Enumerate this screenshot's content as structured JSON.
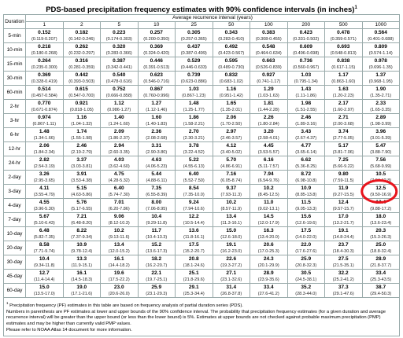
{
  "title": "PDS-based precipitation frequency estimates with 90% confidence intervals (in inches)",
  "title_note": "1",
  "header": {
    "duration": "Duration",
    "group": "Average recurrence interval (years)",
    "intervals": [
      "1",
      "2",
      "5",
      "10",
      "25",
      "50",
      "100",
      "200",
      "500",
      "1000"
    ]
  },
  "rows": [
    {
      "label": "5-min",
      "values": [
        [
          "0.152",
          "(0.119-0.207)"
        ],
        [
          "0.182",
          "(0.142-0.246)"
        ],
        [
          "0.223",
          "(0.174-0.303)"
        ],
        [
          "0.257",
          "(0.200-0.350)"
        ],
        [
          "0.305",
          "(0.257-0.365)"
        ],
        [
          "0.343",
          "(0.283-0.410)"
        ],
        [
          "0.383",
          "(0.308-0.455)"
        ],
        [
          "0.423",
          "(0.331-0.502)"
        ],
        [
          "0.478",
          "(0.359-0.571)"
        ],
        [
          "0.564",
          "(0.401-0.688)"
        ]
      ]
    },
    {
      "label": "10-min",
      "values": [
        [
          "0.218",
          "(0.180-0.268)"
        ],
        [
          "0.262",
          "(0.232-0.297)"
        ],
        [
          "0.320",
          "(0.283-0.366)"
        ],
        [
          "0.369",
          "(0.324-0.420)"
        ],
        [
          "0.437",
          "(0.387-0.499)"
        ],
        [
          "0.492",
          "(0.423-0.567)"
        ],
        [
          "0.548",
          "(0.464-0.634)"
        ],
        [
          "0.609",
          "(0.496-0.698)"
        ],
        [
          "0.693",
          "(0.548-0.813)"
        ],
        [
          "0.809",
          "(0.574-1.14)"
        ]
      ]
    },
    {
      "label": "15-min",
      "values": [
        [
          "0.264",
          "(0.235-0.300)"
        ],
        [
          "0.316",
          "(0.281-0.359)"
        ],
        [
          "0.387",
          "(0.342-0.441)"
        ],
        [
          "0.446",
          "(0.391-0.513)"
        ],
        [
          "0.529",
          "(0.446-0.633)"
        ],
        [
          "0.595",
          "(0.489-0.730)"
        ],
        [
          "0.663",
          "(0.526-0.839)"
        ],
        [
          "0.736",
          "(0.560-0.967)"
        ],
        [
          "0.838",
          "(0.617-1.15)"
        ],
        [
          "0.978",
          "(0.696-1.35)"
        ]
      ]
    },
    {
      "label": "30-min",
      "values": [
        [
          "0.369",
          "(0.328-0.419)"
        ],
        [
          "0.442",
          "(0.393-0.503)"
        ],
        [
          "0.540",
          "(0.478-0.616)"
        ],
        [
          "0.623",
          "(0.546-0.716)"
        ],
        [
          "0.739",
          "(0.623-0.886)"
        ],
        [
          "0.832",
          "(0.683-1.02)"
        ],
        [
          "0.927",
          "(0.741-1.17)"
        ],
        [
          "1.03",
          "(0.795-1.34)"
        ],
        [
          "1.17",
          "(0.863-1.60)"
        ],
        [
          "1.37",
          "(0.968-1.95)"
        ]
      ]
    },
    {
      "label": "60-min",
      "values": [
        [
          "0.514",
          "(0.457-0.584)"
        ],
        [
          "0.615",
          "(0.547-0.700)"
        ],
        [
          "0.752",
          "(0.666-0.858)"
        ],
        [
          "0.867",
          "(0.760-0.996)"
        ],
        [
          "1.03",
          "(0.867-1.23)"
        ],
        [
          "1.16",
          "(0.951-1.42)"
        ],
        [
          "1.29",
          "(1.03-1.63)"
        ],
        [
          "1.43",
          "(1.11-1.86)"
        ],
        [
          "1.63",
          "(1.20-2.23)"
        ],
        [
          "1.90",
          "(1.35-2.71)"
        ]
      ]
    },
    {
      "label": "2-hr",
      "values": [
        [
          "0.770",
          "(0.671-0.874)"
        ],
        [
          "0.921",
          "(0.818-1.05)"
        ],
        [
          "1.12",
          "(0.986-1.27)"
        ],
        [
          "1.27",
          "(1.12-1.46)"
        ],
        [
          "1.48",
          "(1.25-1.77)"
        ],
        [
          "1.65",
          "(1.35-2.01)"
        ],
        [
          "1.81",
          "(1.44-2.28)"
        ],
        [
          "1.98",
          "(1.51-2.55)"
        ],
        [
          "2.17",
          "(1.60-2.97)"
        ],
        [
          "2.33",
          "(1.65-3.35)"
        ]
      ]
    },
    {
      "label": "3-hr",
      "values": [
        [
          "0.974",
          "(0.867-1.11)"
        ],
        [
          "1.16",
          "(1.04-1.32)"
        ],
        [
          "1.40",
          "(1.24-1.60)"
        ],
        [
          "1.60",
          "(1.40-1.83)"
        ],
        [
          "1.86",
          "(1.58-2.21)"
        ],
        [
          "2.06",
          "(1.70-2.50)"
        ],
        [
          "2.26",
          "(1.80-2.84)"
        ],
        [
          "2.46",
          "(1.89-3.16)"
        ],
        [
          "2.71",
          "(2.00-3.68)"
        ],
        [
          "2.89",
          "(1.98-3.99)"
        ]
      ]
    },
    {
      "label": "6-hr",
      "values": [
        [
          "1.48",
          "(1.34-1.66)"
        ],
        [
          "1.74",
          "(1.55-1.98)"
        ],
        [
          "2.09",
          "(1.86-2.37)"
        ],
        [
          "2.36",
          "(2.08-2.68)"
        ],
        [
          "2.70",
          "(2.30-3.21)"
        ],
        [
          "2.97",
          "(2.46-3.57)"
        ],
        [
          "3.20",
          "(2.58-4.01)"
        ],
        [
          "3.43",
          "(2.67-4.37)"
        ],
        [
          "3.74",
          "(2.77-5.05)"
        ],
        [
          "3.96",
          "(3.01-5.39)"
        ]
      ]
    },
    {
      "label": "12-hr",
      "values": [
        [
          "2.06",
          "(1.84-2.34)"
        ],
        [
          "2.46",
          "(2.19-2.79)"
        ],
        [
          "2.94",
          "(2.60-3.35)"
        ],
        [
          "3.31",
          "(2.90-3.80)"
        ],
        [
          "3.78",
          "(3.22-4.52)"
        ],
        [
          "4.12",
          "(3.40-5.02)"
        ],
        [
          "4.45",
          "(3.53-5.57)"
        ],
        [
          "4.77",
          "(3.65-6.14)"
        ],
        [
          "5.17",
          "(3.81-7.06)"
        ],
        [
          "5.47",
          "(3.88-7.90)"
        ]
      ]
    },
    {
      "label": "24-hr",
      "values": [
        [
          "2.82",
          "(2.54-3.19)"
        ],
        [
          "3.37",
          "(3.03-3.81)"
        ],
        [
          "4.03",
          "(3.62-4.60)"
        ],
        [
          "4.63",
          "(4.06-5.23)"
        ],
        [
          "5.22",
          "(4.55-6.13)"
        ],
        [
          "5.70",
          "(4.86-6.91)"
        ],
        [
          "6.16",
          "(5.11-7.57)"
        ],
        [
          "6.62",
          "(5.36-8.25)"
        ],
        [
          "7.25",
          "(5.66-9.22)"
        ],
        [
          "7.56",
          "(5.68-9.99)"
        ]
      ]
    },
    {
      "label": "2-day",
      "values": [
        [
          "3.26",
          "(2.95-3.65)"
        ],
        [
          "3.91",
          "(3.53-4.38)"
        ],
        [
          "4.75",
          "(4.28-5.32)"
        ],
        [
          "5.44",
          "(4.88-6.11)"
        ],
        [
          "6.40",
          "(5.52-7.50)"
        ],
        [
          "7.16",
          "(6.05-8.74)"
        ],
        [
          "7.94",
          "(6.54-9.76)"
        ],
        [
          "8.72",
          "(6.98-10.8)"
        ],
        [
          "9.80",
          "(7.59-11.5)"
        ],
        [
          "10.5",
          "(7.94-12.8)"
        ]
      ]
    },
    {
      "label": "3-day",
      "values": [
        [
          "4.11",
          "(3.55-4.79)"
        ],
        [
          "5.15",
          "(4.63-5.86)"
        ],
        [
          "6.40",
          "(5.74-7.30)"
        ],
        [
          "7.35",
          "(6.55-8.39)"
        ],
        [
          "8.54",
          "(7.35-10.0)"
        ],
        [
          "9.37",
          "(7.93-11.3)"
        ],
        [
          "10.2",
          "(8.45-12.5)"
        ],
        [
          "10.9",
          "(8.85-13.8)"
        ],
        [
          "11.9",
          "(9.27-15.5)"
        ],
        [
          "12.5",
          "(9.50-16.9)"
        ]
      ]
    },
    {
      "label": "4-day",
      "values": [
        [
          "4.55",
          "(3.96-5.30)"
        ],
        [
          "5.76",
          "(5.17-6.55)"
        ],
        [
          "7.01",
          "(6.20-7.86)"
        ],
        [
          "8.00",
          "(7.06-8.95)"
        ],
        [
          "9.24",
          "(7.94-10.6)"
        ],
        [
          "10.2",
          "(8.57-11.9)"
        ],
        [
          "11.0",
          "(9.02-13.1)"
        ],
        [
          "11.5",
          "(9.05-13.3)"
        ],
        [
          "12.4",
          "(9.57-15.7)"
        ],
        [
          "13.4",
          "(9.88-17.2)"
        ]
      ]
    },
    {
      "label": "7-day",
      "values": [
        [
          "5.67",
          "(5.10-6.43)"
        ],
        [
          "7.21",
          "(6.48-8.20)"
        ],
        [
          "9.06",
          "(8.12-10.3)"
        ],
        [
          "10.4",
          "(9.29-11.8)"
        ],
        [
          "12.2",
          "(10.5-14.4)"
        ],
        [
          "13.4",
          "(11.3-16.1)"
        ],
        [
          "14.5",
          "(12.0-17.9)"
        ],
        [
          "15.6",
          "(12.6-19.6)"
        ],
        [
          "17.0",
          "(13.2-21.7)"
        ],
        [
          "18.0",
          "(13.6-23.4)"
        ]
      ]
    },
    {
      "label": "10-day",
      "values": [
        [
          "6.48",
          "(5.82-7.35)"
        ],
        [
          "8.22",
          "(7.37-9.34)"
        ],
        [
          "10.2",
          "(9.13-11.6)"
        ],
        [
          "11.7",
          "(10.4-13.3)"
        ],
        [
          "13.6",
          "(11.8-16.1)"
        ],
        [
          "15.0",
          "(12.6-18.0)"
        ],
        [
          "16.3",
          "(13.4-20.0)"
        ],
        [
          "17.5",
          "(14.0-22.0)"
        ],
        [
          "19.1",
          "(14.8-24.4)"
        ],
        [
          "20.3",
          "(15.3-26.3)"
        ]
      ]
    },
    {
      "label": "20-day",
      "values": [
        [
          "8.58",
          "(7.71-9.74)"
        ],
        [
          "10.9",
          "(9.78-12.4)"
        ],
        [
          "13.4",
          "(12.0-15.2)"
        ],
        [
          "15.2",
          "(13.6-17.3)"
        ],
        [
          "17.5",
          "(15.2-20.7)"
        ],
        [
          "19.1",
          "(16.2-23.0)"
        ],
        [
          "20.6",
          "(17.0-25.3)"
        ],
        [
          "22.0",
          "(17.6-27.6)"
        ],
        [
          "23.7",
          "(18.4-30.3)"
        ],
        [
          "25.0",
          "(18.8-32.4)"
        ]
      ]
    },
    {
      "label": "30-day",
      "values": [
        [
          "10.4",
          "(9.34-11.8)"
        ],
        [
          "13.3",
          "(11.9-15.1)"
        ],
        [
          "16.1",
          "(14.4-18.2)"
        ],
        [
          "18.2",
          "(16.2-20.7)"
        ],
        [
          "20.8",
          "(18.1-24.6)"
        ],
        [
          "22.6",
          "(19.3-27.2)"
        ],
        [
          "24.3",
          "(20.1-29.9)"
        ],
        [
          "25.9",
          "(20.8-32.3)"
        ],
        [
          "27.5",
          "(21.5-35.1)"
        ],
        [
          "28.9",
          "(21.8-37.7)"
        ]
      ]
    },
    {
      "label": "45-day",
      "values": [
        [
          "12.7",
          "(11.4-14.4)"
        ],
        [
          "16.1",
          "(14.5-18.3)"
        ],
        [
          "19.6",
          "(17.5-22.2)"
        ],
        [
          "22.1",
          "(19.7-25.1)"
        ],
        [
          "25.1",
          "(21.8-29.6)"
        ],
        [
          "27.1",
          "(23.1-32.6)"
        ],
        [
          "28.9",
          "(23.9-35.6)"
        ],
        [
          "30.5",
          "(24.5-38.1)"
        ],
        [
          "32.2",
          "(25.2-41.2)"
        ],
        [
          "33.4",
          "(25.3-43.5)"
        ]
      ]
    },
    {
      "label": "60-day",
      "values": [
        [
          "15.0",
          "(13.5-17.0)"
        ],
        [
          "19.0",
          "(17.1-21.6)"
        ],
        [
          "23.0",
          "(20.6-26.0)"
        ],
        [
          "25.9",
          "(23.1-29.3)"
        ],
        [
          "29.1",
          "(25.3-34.4)"
        ],
        [
          "31.4",
          "(26.8-37.8)"
        ],
        [
          "33.4",
          "(27.6-41.2)"
        ],
        [
          "35.2",
          "(28.3-44.0)"
        ],
        [
          "37.3",
          "(29.1-47.6)"
        ],
        [
          "38.7",
          "(29.4-50.3)"
        ]
      ]
    }
  ],
  "footnote_mark": "1",
  "footnotes": [
    "Precipitation frequency (PF) estimates in this table are based on frequency analysis of partial duration series (PDS).",
    "Numbers in parenthesis are PF estimates at lower and upper bounds of the 90% confidence interval. The probability that precipitation frequency estimates (for a given duration and average recurrence interval) will be greater than the upper bound (or less than the lower bound) is 5%. Estimates at upper bounds are not checked against probable maximum precipitation (PMP) estimates and may be higher than currently valid PMP values.",
    "Please refer to NOAA Atlas 14 document for more information."
  ]
}
